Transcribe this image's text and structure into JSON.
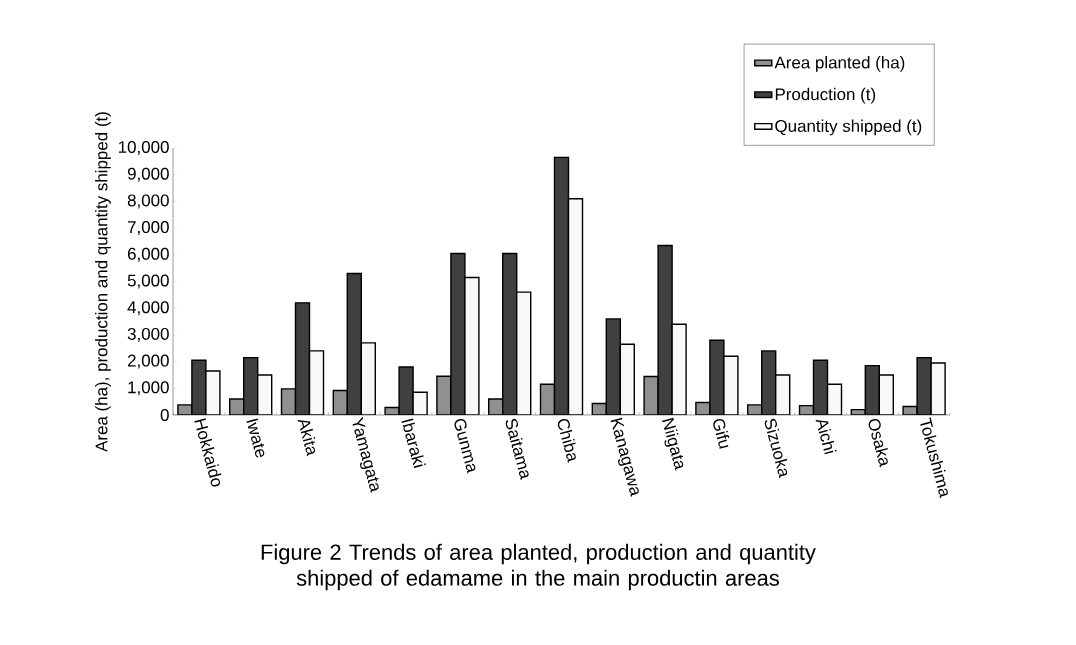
{
  "chart_data": {
    "type": "bar",
    "title": "Figure 2  Trends of area planted, production and quantity shipped of edamame in the main productin areas",
    "ylabel": "Area (ha), production and quantity shipped (t)",
    "categories": [
      "Hokkaido",
      "Iwate",
      "Akita",
      "Yamagata",
      "Ibaraki",
      "Gunma",
      "Saitama",
      "Chiba",
      "Kanagawa",
      "Niigata",
      "Gifu",
      "Sizuoka",
      "Aichi",
      "Osaka",
      "Tokushima"
    ],
    "series": [
      {
        "name": "Area planted (ha)",
        "color": "#909090",
        "values": [
          380,
          600,
          980,
          920,
          280,
          1450,
          600,
          1150,
          430,
          1440,
          470,
          380,
          350,
          200,
          320
        ]
      },
      {
        "name": "Production (t)",
        "color": "#404040",
        "values": [
          2050,
          2150,
          4200,
          5300,
          1800,
          6050,
          6050,
          9650,
          3600,
          6350,
          2800,
          2400,
          2050,
          1850,
          2150
        ]
      },
      {
        "name": "Quantity shipped (t)",
        "color": "#f8f8f8",
        "values": [
          1650,
          1500,
          2400,
          2700,
          850,
          5150,
          4600,
          8100,
          2650,
          3400,
          2200,
          1500,
          1150,
          1500,
          1950
        ]
      }
    ],
    "ylim": [
      0,
      10000
    ],
    "yticks": [
      0,
      {
        "value": 1000,
        "label": "1,000"
      },
      {
        "value": 2000,
        "label": "2,000"
      },
      {
        "value": 3000,
        "label": "3,000"
      },
      {
        "value": 4000,
        "label": "4,000"
      },
      {
        "value": 5000,
        "label": "5,000"
      },
      {
        "value": 6000,
        "label": "6,000"
      },
      {
        "value": 7000,
        "label": "7,000"
      },
      {
        "value": 8000,
        "label": "8,000"
      },
      {
        "value": 9000,
        "label": "9,000"
      },
      {
        "value": 10000,
        "label": "10,000"
      }
    ],
    "legend": "top right",
    "grid": false
  }
}
